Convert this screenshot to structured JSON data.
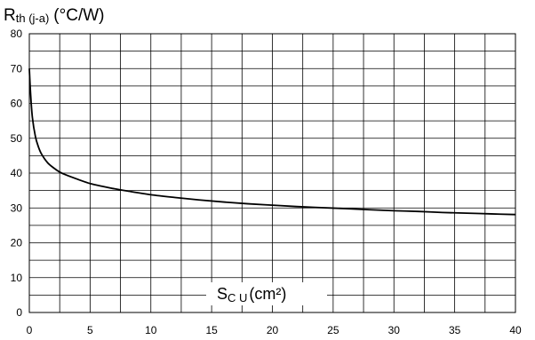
{
  "chart_data": {
    "type": "line",
    "title": "",
    "ylabel": {
      "main": "R",
      "sub": "th (j-a)",
      "unit": "(°C/W)"
    },
    "xlabel": {
      "main": "S",
      "sub": "C U",
      "unit": "(cm²)"
    },
    "xlim": [
      0,
      40
    ],
    "ylim": [
      0,
      80
    ],
    "x_ticks": [
      "0",
      "5",
      "10",
      "15",
      "20",
      "25",
      "30",
      "35",
      "40"
    ],
    "y_ticks": [
      "0",
      "10",
      "20",
      "30",
      "40",
      "50",
      "60",
      "70",
      "80"
    ],
    "grid": true,
    "series": [
      {
        "x": [
          0,
          0.1,
          0.25,
          0.5,
          0.75,
          1,
          1.5,
          2,
          2.5,
          3,
          4,
          5,
          6,
          7,
          8,
          10,
          12,
          14,
          16,
          18,
          20,
          22,
          24,
          26,
          28,
          30,
          32,
          34,
          36,
          38,
          40
        ],
        "values": [
          70,
          63,
          56,
          50.5,
          47.5,
          45.5,
          43,
          41.5,
          40.3,
          39.5,
          38.2,
          37,
          36.2,
          35.5,
          34.9,
          33.8,
          33,
          32.3,
          31.7,
          31.2,
          30.8,
          30.4,
          30.1,
          29.8,
          29.5,
          29.2,
          29,
          28.7,
          28.5,
          28.3,
          28.1
        ]
      }
    ]
  }
}
